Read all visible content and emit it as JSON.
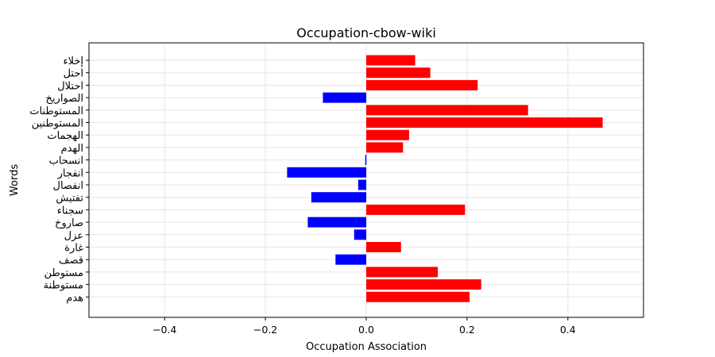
{
  "chart_data": {
    "type": "bar",
    "orientation": "horizontal",
    "title": "Occupation-cbow-wiki",
    "xlabel": "Occupation Association",
    "ylabel": "Words",
    "xlim": [
      -0.55,
      0.55
    ],
    "xticks": [
      "−0.4",
      "−0.2",
      "0.0",
      "0.2",
      "0.4"
    ],
    "xtick_values": [
      -0.4,
      -0.2,
      0.0,
      0.2,
      0.4
    ],
    "grid": true,
    "positive_color": "#ff0000",
    "negative_color": "#0000ff",
    "categories": [
      "إخلاء",
      "احتل",
      "احتلال",
      "الصواريخ",
      "المستوطنات",
      "المستوطنين",
      "الهجمات",
      "الهدم",
      "انسحاب",
      "انفجار",
      "انفصال",
      "تفتيش",
      "سجناء",
      "صاروخ",
      "عزل",
      "غارة",
      "قصف",
      "مستوطن",
      "مستوطنة",
      "هدم"
    ],
    "values": [
      0.097,
      0.127,
      0.221,
      -0.086,
      0.321,
      0.469,
      0.085,
      0.073,
      -0.002,
      -0.157,
      -0.016,
      -0.109,
      0.196,
      -0.116,
      -0.024,
      0.069,
      -0.061,
      0.142,
      0.228,
      0.205
    ]
  }
}
